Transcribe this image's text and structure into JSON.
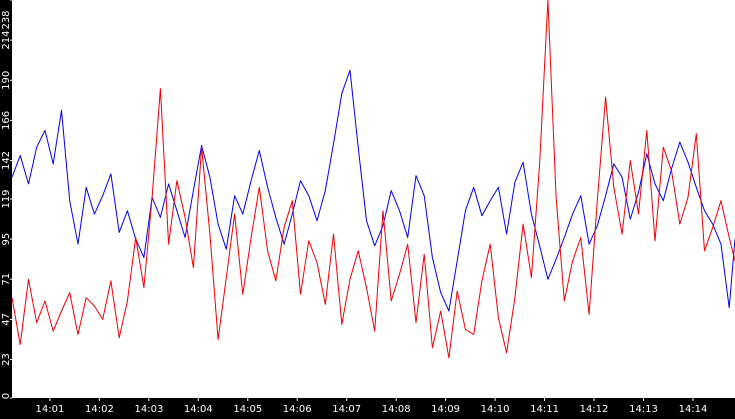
{
  "chart_data": {
    "type": "line",
    "title": "",
    "xlabel": "",
    "ylabel": "",
    "ylim": [
      0,
      238
    ],
    "xlim": [
      "14:00:14",
      "14:14:51"
    ],
    "grid": false,
    "y_ticks": [
      "0",
      "23",
      "47",
      "71",
      "95",
      "119",
      "142",
      "166",
      "190",
      "214",
      "238"
    ],
    "x_ticks": [
      "14:01",
      "14:02",
      "14:03",
      "14:04",
      "14:05",
      "14:06",
      "14:07",
      "14:08",
      "14:09",
      "14:10",
      "14:11",
      "14:12",
      "14:13",
      "14:14"
    ],
    "series": [
      {
        "color": "#0000ee",
        "x": [
          "14:00:14",
          "14:00:24",
          "14:00:34",
          "14:00:44",
          "14:00:54",
          "14:01:04",
          "14:01:14",
          "14:01:24",
          "14:01:34",
          "14:01:44",
          "14:01:54",
          "14:02:04",
          "14:02:14",
          "14:02:24",
          "14:02:34",
          "14:02:44",
          "14:02:54",
          "14:03:04",
          "14:03:14",
          "14:03:24",
          "14:03:34",
          "14:03:44",
          "14:03:54",
          "14:04:04",
          "14:04:14",
          "14:04:24",
          "14:04:34",
          "14:04:44",
          "14:04:54",
          "14:05:04",
          "14:05:14",
          "14:05:24",
          "14:05:34",
          "14:05:44",
          "14:05:54",
          "14:06:04",
          "14:06:14",
          "14:06:24",
          "14:06:34",
          "14:06:44",
          "14:06:54",
          "14:07:04",
          "14:07:14",
          "14:07:24",
          "14:07:34",
          "14:07:44",
          "14:07:54",
          "14:08:04",
          "14:08:14",
          "14:08:24",
          "14:08:34",
          "14:08:44",
          "14:08:54",
          "14:09:04",
          "14:09:14",
          "14:09:24",
          "14:09:34",
          "14:09:44",
          "14:09:54",
          "14:10:04",
          "14:10:14",
          "14:10:24",
          "14:10:34",
          "14:10:44",
          "14:10:54",
          "14:11:04",
          "14:11:14",
          "14:11:24",
          "14:11:34",
          "14:11:44",
          "14:11:54",
          "14:12:04",
          "14:12:14",
          "14:12:24",
          "14:12:34",
          "14:12:44",
          "14:12:54",
          "14:13:04",
          "14:13:14",
          "14:13:24",
          "14:13:34",
          "14:13:44",
          "14:13:54",
          "14:14:04",
          "14:14:14",
          "14:14:24",
          "14:14:34",
          "14:14:44",
          "14:14:51"
        ],
        "y": [
          132,
          145,
          128,
          150,
          160,
          140,
          172,
          118,
          92,
          126,
          110,
          121,
          134,
          99,
          112,
          95,
          84,
          120,
          108,
          128,
          112,
          96,
          124,
          151,
          132,
          104,
          89,
          121,
          110,
          130,
          148,
          126,
          108,
          92,
          110,
          130,
          121,
          106,
          124,
          152,
          182,
          196,
          150,
          106,
          91,
          103,
          124,
          112,
          96,
          133,
          121,
          84,
          63,
          52,
          82,
          112,
          126,
          109,
          118,
          126,
          98,
          129,
          141,
          110,
          91,
          71,
          83,
          96,
          110,
          121,
          92,
          103,
          121,
          140,
          132,
          107,
          123,
          146,
          128,
          118,
          137,
          153,
          141,
          126,
          112,
          104,
          92,
          54,
          95
        ]
      },
      {
        "color": "#ee0000",
        "x": [
          "14:00:14",
          "14:00:24",
          "14:00:34",
          "14:00:44",
          "14:00:54",
          "14:01:04",
          "14:01:14",
          "14:01:24",
          "14:01:34",
          "14:01:44",
          "14:01:54",
          "14:02:04",
          "14:02:14",
          "14:02:24",
          "14:02:34",
          "14:02:44",
          "14:02:54",
          "14:03:04",
          "14:03:14",
          "14:03:24",
          "14:03:34",
          "14:03:44",
          "14:03:54",
          "14:04:04",
          "14:04:14",
          "14:04:24",
          "14:04:34",
          "14:04:44",
          "14:04:54",
          "14:05:04",
          "14:05:14",
          "14:05:24",
          "14:05:34",
          "14:05:44",
          "14:05:54",
          "14:06:04",
          "14:06:14",
          "14:06:24",
          "14:06:34",
          "14:06:44",
          "14:06:54",
          "14:07:04",
          "14:07:14",
          "14:07:24",
          "14:07:34",
          "14:07:44",
          "14:07:54",
          "14:08:04",
          "14:08:14",
          "14:08:24",
          "14:08:34",
          "14:08:44",
          "14:08:54",
          "14:09:04",
          "14:09:14",
          "14:09:24",
          "14:09:34",
          "14:09:44",
          "14:09:54",
          "14:10:04",
          "14:10:14",
          "14:10:24",
          "14:10:34",
          "14:10:44",
          "14:10:54",
          "14:11:04",
          "14:11:14",
          "14:11:24",
          "14:11:34",
          "14:11:44",
          "14:11:54",
          "14:12:04",
          "14:12:14",
          "14:12:24",
          "14:12:34",
          "14:12:44",
          "14:12:54",
          "14:13:04",
          "14:13:14",
          "14:13:24",
          "14:13:34",
          "14:13:44",
          "14:13:54",
          "14:14:04",
          "14:14:14",
          "14:14:24",
          "14:14:34",
          "14:14:44",
          "14:14:51"
        ],
        "y": [
          60,
          32,
          71,
          45,
          58,
          40,
          52,
          63,
          38,
          60,
          55,
          47,
          70,
          36,
          58,
          96,
          66,
          120,
          185,
          92,
          130,
          108,
          78,
          150,
          98,
          35,
          72,
          110,
          62,
          96,
          126,
          88,
          70,
          102,
          118,
          62,
          94,
          81,
          56,
          98,
          44,
          71,
          88,
          66,
          40,
          112,
          58,
          74,
          92,
          45,
          86,
          30,
          52,
          24,
          64,
          41,
          38,
          70,
          92,
          48,
          27,
          60,
          104,
          72,
          140,
          238,
          120,
          58,
          82,
          96,
          50,
          118,
          180,
          126,
          98,
          142,
          110,
          160,
          94,
          150,
          136,
          104,
          120,
          158,
          88,
          102,
          118,
          96,
          82
        ]
      }
    ]
  }
}
